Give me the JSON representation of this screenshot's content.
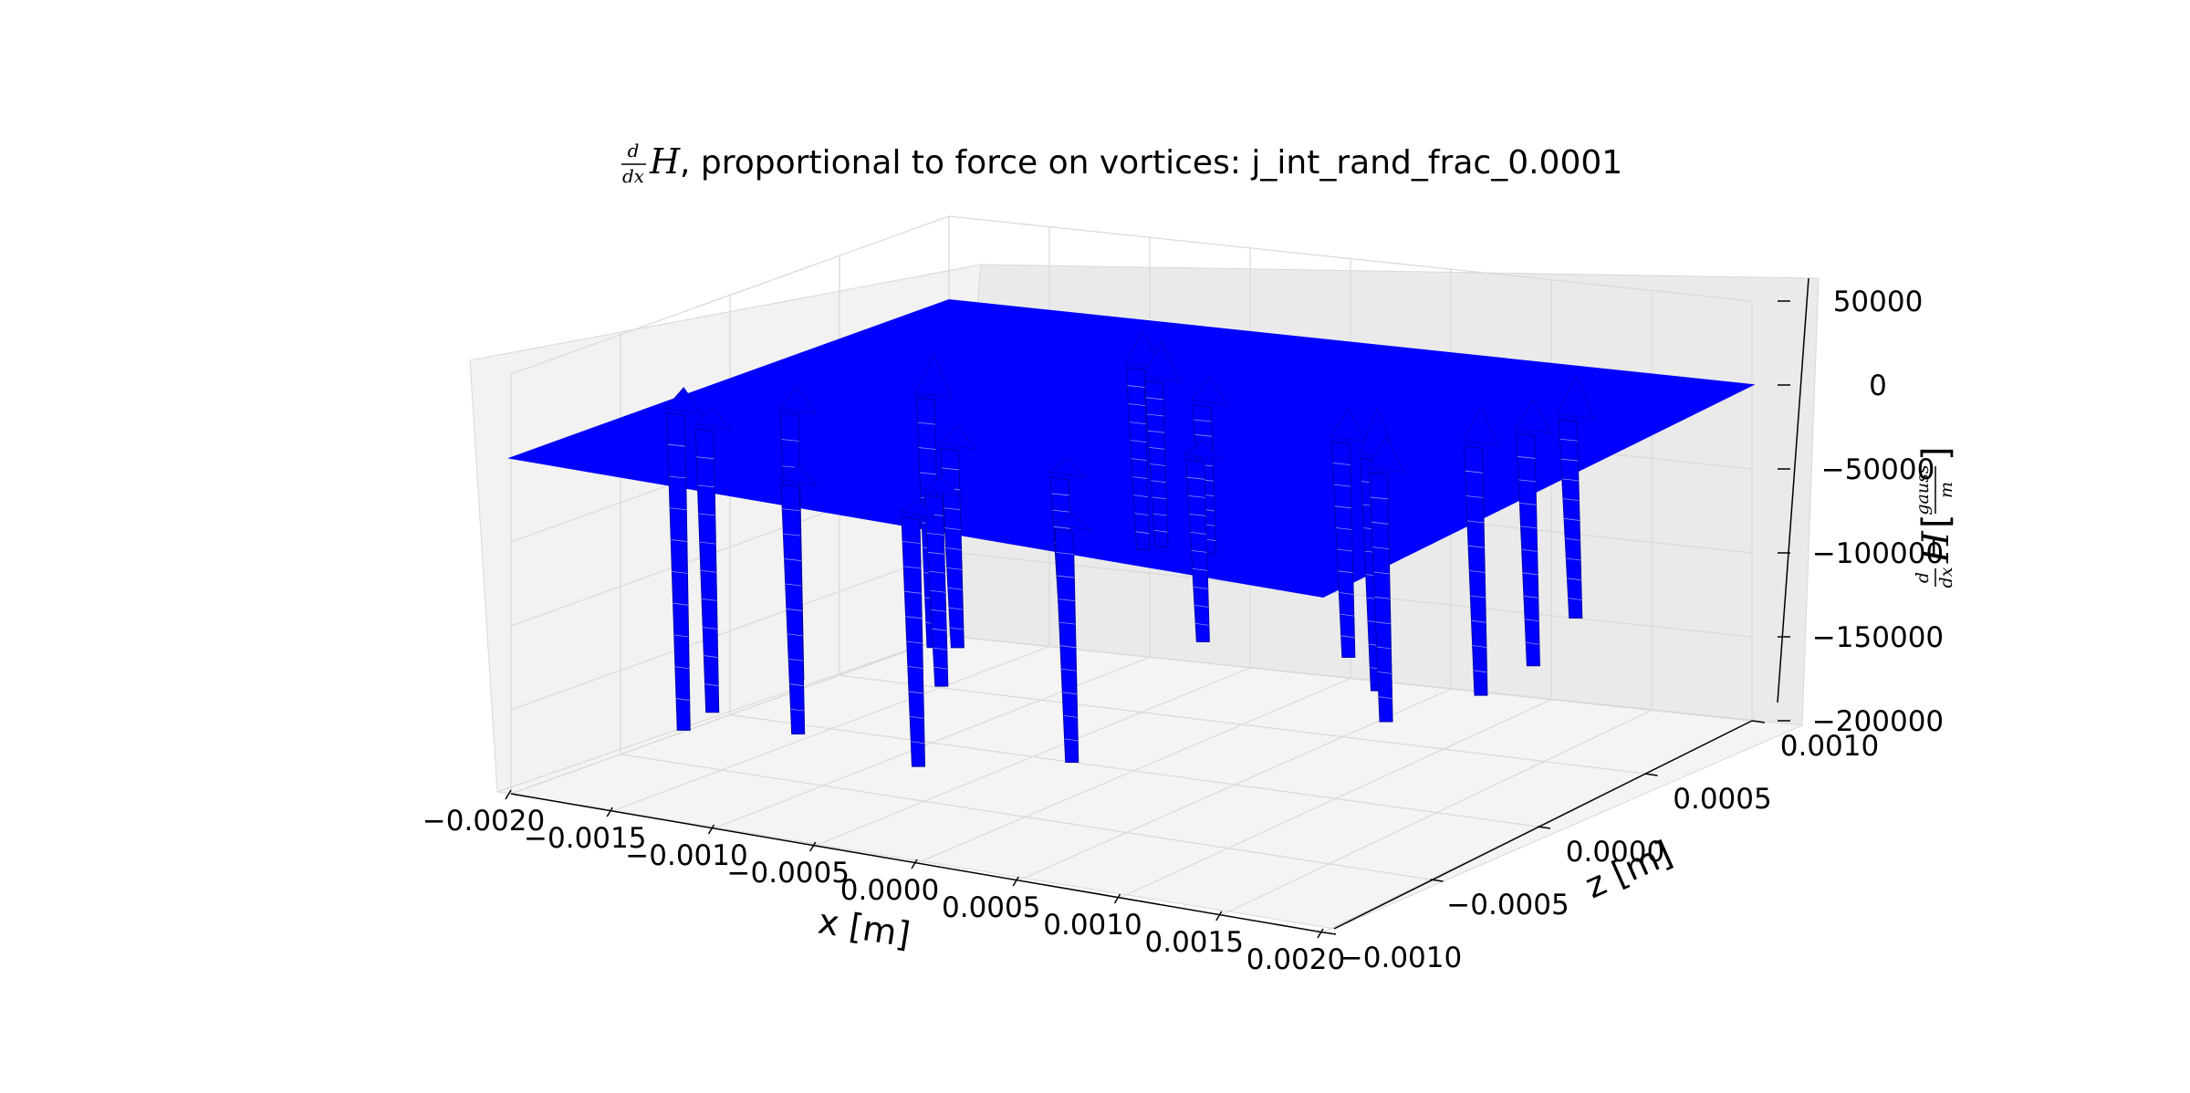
{
  "title": {
    "math_prefix_numerator": "d",
    "math_prefix_denominator": "dx",
    "math_prefix_symbol": "H",
    "text": ", proportional to force on vortices: j_int_rand_frac_0.0001"
  },
  "chart_data": {
    "type": "surface3d",
    "title": "d/dx H, proportional to force on vortices: j_int_rand_frac_0.0001",
    "xlabel": "x [m]",
    "zlabel_depth": "z [m]",
    "vlabel": {
      "numerator": "d",
      "denominator": "dx",
      "symbol": "H",
      "unit_numerator": "gauss",
      "unit_denominator": "m"
    },
    "x_ticks": [
      "−0.0020",
      "−0.0015",
      "−0.0010",
      "−0.0005",
      "0.0000",
      "0.0005",
      "0.0010",
      "0.0015",
      "0.0020"
    ],
    "x_tick_values": [
      -0.002,
      -0.0015,
      -0.001,
      -0.0005,
      0.0,
      0.0005,
      0.001,
      0.0015,
      0.002
    ],
    "z_ticks": [
      "−0.0010",
      "−0.0005",
      "0.0000",
      "0.0005",
      "0.0010"
    ],
    "z_tick_values": [
      -0.001,
      -0.0005,
      0.0,
      0.0005,
      0.001
    ],
    "v_ticks": [
      "−200000",
      "−150000",
      "−100000",
      "−50000",
      "0",
      "50000"
    ],
    "v_tick_values": [
      -200000,
      -150000,
      -100000,
      -50000,
      0,
      50000
    ],
    "xlim": [
      -0.002,
      0.002
    ],
    "zlim": [
      -0.001,
      0.001
    ],
    "vlim": [
      -200000,
      50000
    ],
    "grid": true,
    "surface_color": "#0000ff",
    "baseline_value": 0,
    "spikes": [
      {
        "x": -0.00185,
        "z": -0.00035,
        "min": -190000,
        "peak": 14000
      },
      {
        "x": -0.0016,
        "z": -0.00045,
        "min": -170000,
        "peak": 12000
      },
      {
        "x": -0.00145,
        "z": -0.0002,
        "min": -160000,
        "peak": 14000
      },
      {
        "x": -0.0011,
        "z": 0.0001,
        "min": -150000,
        "peak": 25000
      },
      {
        "x": -0.0008,
        "z": -0.0008,
        "min": -150000,
        "peak": 10000
      },
      {
        "x": -0.0006,
        "z": 0.0006,
        "min": -110000,
        "peak": 20000
      },
      {
        "x": -0.00055,
        "z": -0.0003,
        "min": -120000,
        "peak": 12000
      },
      {
        "x": -0.0004,
        "z": 0.0005,
        "min": -100000,
        "peak": 22000
      },
      {
        "x": -0.0002,
        "z": -0.0007,
        "min": -115000,
        "peak": 10000
      },
      {
        "x": -0.0001,
        "z": -0.0009,
        "min": -150000,
        "peak": 8000
      },
      {
        "x": 0.0,
        "z": 0.00035,
        "min": -90000,
        "peak": 15000
      },
      {
        "x": 0.0001,
        "z": -0.0004,
        "min": -100000,
        "peak": 10000
      },
      {
        "x": 0.00045,
        "z": -0.0001,
        "min": -110000,
        "peak": 10000
      },
      {
        "x": 0.00055,
        "z": -0.0008,
        "min": -140000,
        "peak": 8000
      },
      {
        "x": 0.00085,
        "z": 0.0002,
        "min": -130000,
        "peak": 18000
      },
      {
        "x": 0.0011,
        "z": 0.0001,
        "min": -140000,
        "peak": 28000
      },
      {
        "x": 0.00125,
        "z": 0.0,
        "min": -150000,
        "peak": 20000
      },
      {
        "x": 0.0014,
        "z": 0.0003,
        "min": -150000,
        "peak": 22000
      },
      {
        "x": 0.0015,
        "z": 0.00045,
        "min": -140000,
        "peak": 18000
      },
      {
        "x": 0.00155,
        "z": 0.0006,
        "min": -120000,
        "peak": 25000
      }
    ]
  }
}
